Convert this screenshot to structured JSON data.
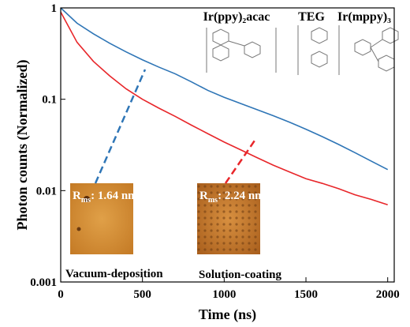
{
  "chart_data": {
    "type": "line",
    "xlabel": "Time (ns)",
    "ylabel": "Photon counts (Normalized)",
    "x": [
      0,
      100,
      200,
      300,
      400,
      500,
      600,
      700,
      800,
      900,
      1000,
      1100,
      1200,
      1300,
      1400,
      1500,
      1600,
      1700,
      1800,
      1900,
      2000
    ],
    "series": [
      {
        "name": "Vacuum-deposition",
        "color": "#2e75b6",
        "values": [
          1,
          0.68,
          0.52,
          0.41,
          0.33,
          0.27,
          0.225,
          0.19,
          0.155,
          0.125,
          0.105,
          0.09,
          0.077,
          0.066,
          0.056,
          0.047,
          0.039,
          0.032,
          0.026,
          0.021,
          0.017
        ]
      },
      {
        "name": "Solution-coating",
        "color": "#e8262a",
        "values": [
          0.9,
          0.42,
          0.26,
          0.18,
          0.13,
          0.1,
          0.08,
          0.065,
          0.052,
          0.042,
          0.034,
          0.028,
          0.023,
          0.019,
          0.016,
          0.0135,
          0.012,
          0.0105,
          0.009,
          0.008,
          0.007
        ]
      }
    ],
    "xlim": [
      0,
      2040
    ],
    "xticks": [
      0,
      500,
      1000,
      1500,
      2000
    ],
    "ylim": [
      0.001,
      1
    ],
    "yticks": [
      0.001,
      0.01,
      0.1,
      1
    ],
    "log_y": true,
    "molecules": [
      "Ir(ppy)₂acac",
      "TEG",
      "Ir(mppy)₃"
    ],
    "rms_labels": [
      {
        "main": "R",
        "sub": "ms",
        "rest": ": 1.64 nm"
      },
      {
        "main": "R",
        "sub": "ms",
        "rest": ": 2.24 nm"
      }
    ]
  }
}
